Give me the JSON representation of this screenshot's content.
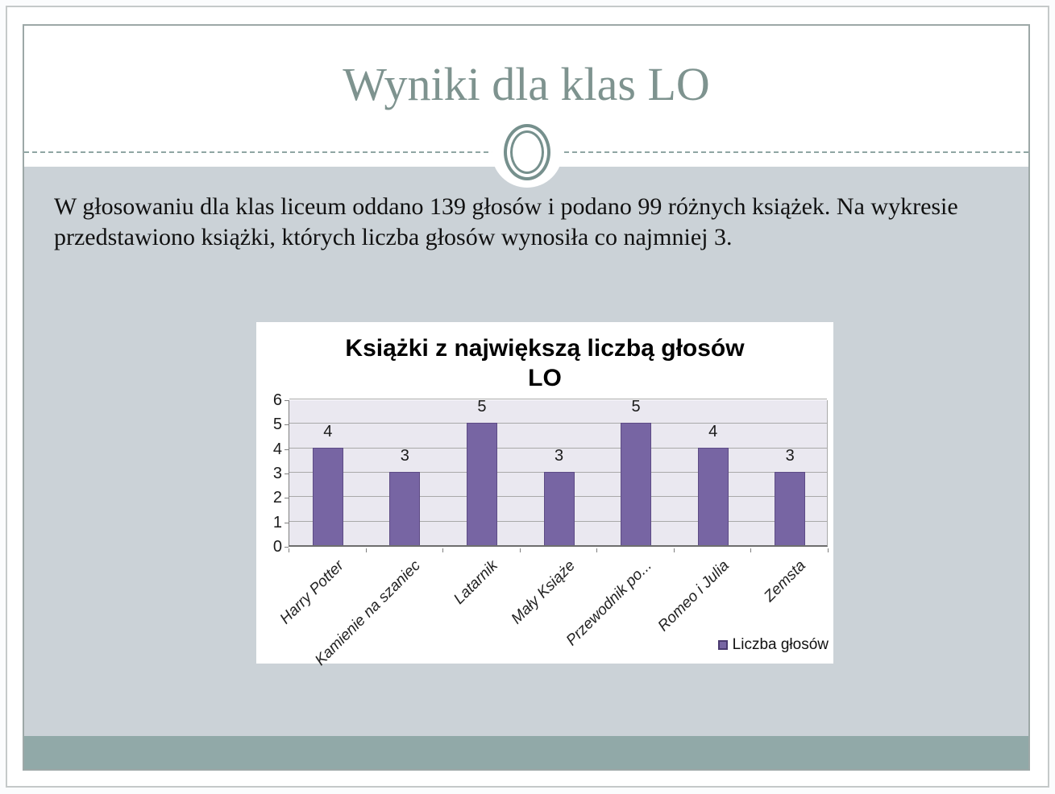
{
  "slide": {
    "title": "Wyniki dla klas LO",
    "body": "W głosowaniu dla klas liceum oddano 139 głosów i podano 99 różnych książek. Na wykresie przedstawiono książki, których liczba głosów wynosiła co najmniej 3."
  },
  "colors": {
    "title_text": "#7e938f",
    "content_band": "#cbd2d7",
    "footer_band": "#91a9a8",
    "divider_dash": "#8fa6a3",
    "ornament_ring": "#76908d",
    "bar_fill": "#7765a3",
    "bar_border": "#5d4b85",
    "plot_background": "#eae8f0",
    "gridline": "#a9a9a9"
  },
  "chart_data": {
    "type": "bar",
    "title": "Książki z największą liczbą głosów LO",
    "title_line1": "Książki z największą liczbą głosów",
    "title_line2": "LO",
    "categories": [
      "Harry Potter",
      "Kamienie na szaniec",
      "Latarnik",
      "Mały Książe",
      "Przewodnik po...",
      "Romeo i Julia",
      "Zemsta"
    ],
    "values": [
      4,
      3,
      5,
      3,
      5,
      4,
      3
    ],
    "series_name": "Liczba głosów",
    "xlabel": "",
    "ylabel": "",
    "ylim": [
      0,
      6
    ],
    "yticks": [
      0,
      1,
      2,
      3,
      4,
      5,
      6
    ],
    "grid": true,
    "data_labels": true,
    "legend_position": "bottom-right"
  }
}
